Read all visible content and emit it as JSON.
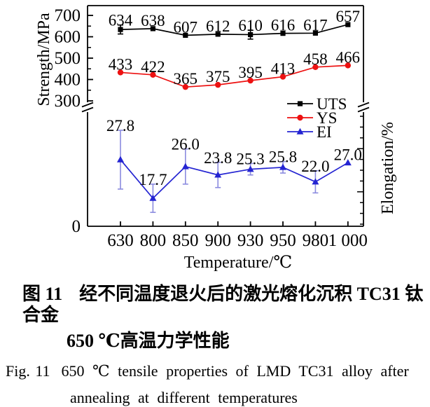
{
  "chart_data": {
    "type": "line",
    "title": "",
    "xlabel": "Temperature/℃",
    "ylabel_left": "Strength/MPa",
    "ylabel_right": "Elongation/%",
    "x": [
      630,
      800,
      850,
      900,
      930,
      950,
      980,
      1000
    ],
    "x_tick_labels": [
      "630",
      "800",
      "850",
      "900",
      "930",
      "950",
      "980",
      "1 000"
    ],
    "y_left_ticks": [
      300,
      400,
      500,
      600,
      700
    ],
    "y_left_minor_ticks": [
      350,
      450,
      550,
      650
    ],
    "y_left_origin_label": "0",
    "y_left_range_shown": [
      300,
      745
    ],
    "axis_break": {
      "left": true,
      "right": true
    },
    "grid": false,
    "legend_position": "middle-right",
    "legend": [
      "UTS",
      "YS",
      "EI"
    ],
    "series": [
      {
        "name": "UTS",
        "axis": "left",
        "color": "#000000",
        "marker": "square",
        "values": [
          634,
          638,
          607,
          612,
          610,
          616,
          617,
          657
        ],
        "labels": [
          "634",
          "638",
          "607",
          "612",
          "610",
          "616",
          "617",
          "657"
        ],
        "errors": [
          21,
          0,
          0,
          0,
          21,
          0,
          0,
          0
        ]
      },
      {
        "name": "YS",
        "axis": "left",
        "color": "#ed1111",
        "marker": "circle",
        "values": [
          433,
          422,
          365,
          375,
          395,
          413,
          458,
          466
        ],
        "labels": [
          "433",
          "422",
          "365",
          "375",
          "395",
          "413",
          "458",
          "466"
        ],
        "errors": [
          0,
          0,
          0,
          0,
          0,
          0,
          0,
          0
        ]
      },
      {
        "name": "EI",
        "axis": "right",
        "color": "#2424d2",
        "error_color": "#8b8bdf",
        "marker": "triangle",
        "values": [
          27.8,
          17.7,
          26.0,
          23.8,
          25.3,
          25.8,
          22.0,
          27.0
        ],
        "labels": [
          "27.8",
          "17.7",
          "26.0",
          "23.8",
          "25.3",
          "25.8",
          "22.0",
          "27.0"
        ],
        "errors": [
          7.7,
          3.7,
          4.6,
          3.3,
          1.5,
          1.5,
          2.9,
          0
        ]
      }
    ]
  },
  "caption": {
    "fig_label_zh": "图 11",
    "zh_line1": "经不同温度退火后的激光熔化沉积 TC31 钛合金",
    "zh_line2": "650 ℃高温力学性能",
    "fig_label_en": "Fig. 11",
    "en_line1": "650 ℃ tensile properties of LMD TC31 alloy after",
    "en_line2": "annealing at different temperatures"
  }
}
